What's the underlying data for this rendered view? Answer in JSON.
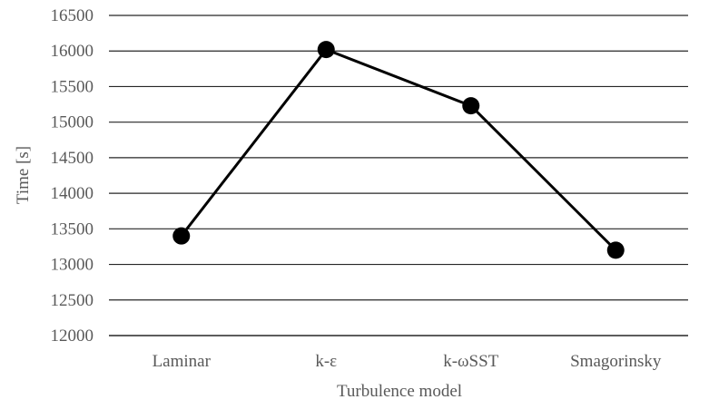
{
  "chart_data": {
    "type": "line",
    "title": "",
    "xlabel": "Turbulence model",
    "ylabel": "Time [s]",
    "categories": [
      "Laminar",
      "k-ε",
      "k-ωSST",
      "Smagorinsky"
    ],
    "series": [
      {
        "values": [
          13400,
          16020,
          15230,
          13200
        ]
      }
    ],
    "ylim": [
      12000,
      16500
    ],
    "yticks": [
      "12000",
      "12500",
      "13000",
      "13500",
      "14000",
      "14500",
      "15000",
      "15500",
      "16000",
      "16500"
    ],
    "grid": true,
    "legend": "none",
    "colors": {
      "line": "#000000",
      "marker": "#000000",
      "grid": "#262626"
    }
  }
}
